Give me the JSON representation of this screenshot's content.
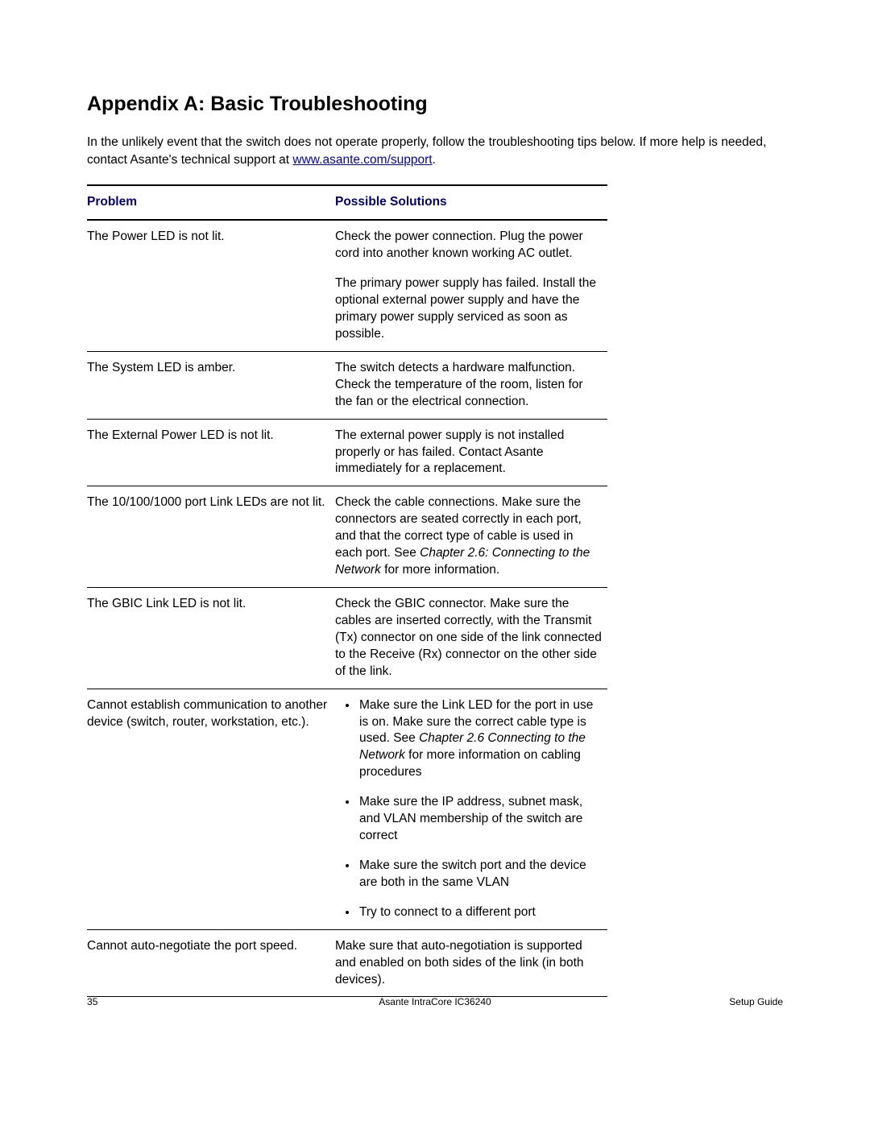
{
  "title": "Appendix A: Basic Troubleshooting",
  "intro": {
    "before_link": "In the unlikely event that the switch does not operate properly, follow the troubleshooting tips below. If more help is needed, contact Asante's technical support at ",
    "link_text": "www.asante.com/support",
    "after_link": "."
  },
  "table": {
    "headers": {
      "problem": "Problem",
      "solutions": "Possible Solutions"
    },
    "rows": {
      "r1": {
        "problem": "The Power LED is not lit.",
        "sol_p1": "Check the power connection. Plug the power cord into another known working AC outlet.",
        "sol_p2": "The primary power supply has failed. Install the optional external power supply and have the primary power supply serviced as soon as possible."
      },
      "r2": {
        "problem": "The System LED is amber.",
        "sol_p1": "The switch detects a hardware malfunction. Check the temperature of the room, listen for the fan or the electrical connection."
      },
      "r3": {
        "problem": "The External Power LED is not lit.",
        "sol_p1": "The external power supply is not installed properly or has failed. Contact Asante immediately for a replacement."
      },
      "r4": {
        "problem": "The 10/100/1000 port Link LEDs are not lit.",
        "sol_p1_before": "Check the cable connections. Make sure the connectors are seated correctly in each port, and that the correct type of cable is used in each port. See ",
        "sol_p1_italic": "Chapter 2.6: Connecting to the Network",
        "sol_p1_after": " for more information."
      },
      "r5": {
        "problem": "The GBIC Link LED is not lit.",
        "sol_p1": "Check the GBIC connector. Make sure the cables are inserted correctly, with the Transmit (Tx) connector on one side of the link connected to the Receive (Rx) connector on the other side of the link."
      },
      "r6": {
        "problem": "Cannot establish communication to another device (switch, router, workstation, etc.).",
        "bullet1_before": "Make sure the Link LED for the port in use is on. Make sure the correct cable type is used. See ",
        "bullet1_italic": "Chapter 2.6 Connecting to the Network",
        "bullet1_after": " for more information on cabling procedures",
        "bullet2": "Make sure the IP address, subnet mask, and VLAN membership of the switch are correct",
        "bullet3": "Make sure the switch port and the device are both in the same VLAN",
        "bullet4": "Try to connect to a different port"
      },
      "r7": {
        "problem": "Cannot auto-negotiate the port speed.",
        "sol_p1": "Make sure that auto-negotiation is supported and enabled on both sides of the link (in both devices)."
      }
    }
  },
  "footer": {
    "page": "35",
    "center": "Asante IntraCore IC36240",
    "right": "Setup Guide"
  },
  "colors": {
    "link": "#0000cc",
    "header_text": "#000080",
    "border": "#000000",
    "background": "#ffffff",
    "text": "#000000"
  }
}
